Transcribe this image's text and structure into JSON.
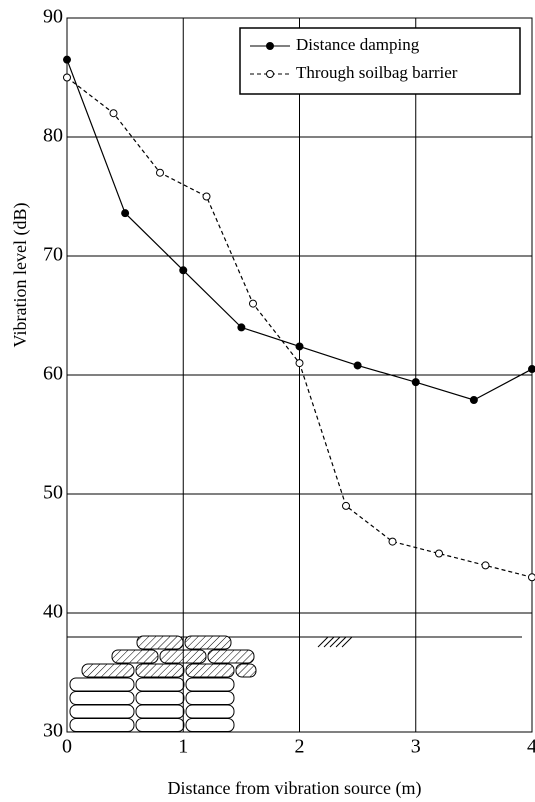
{
  "chart_data": {
    "type": "line",
    "x_label": "Distance from vibration source (m)",
    "y_label": "Vibration level (dB)",
    "xlim": [
      0,
      4
    ],
    "xticks": [
      0,
      1,
      2,
      3,
      4
    ],
    "ylim": [
      30,
      90
    ],
    "yticks": [
      30,
      40,
      50,
      60,
      70,
      80,
      90
    ],
    "grid": true,
    "legend": "upper right",
    "series": [
      {
        "name": "Distance damping",
        "color": "#000000",
        "dashed": false,
        "marker": "filled",
        "x": [
          0,
          0.5,
          1,
          1.5,
          2,
          2.5,
          3,
          3.5,
          4
        ],
        "values": [
          86.5,
          73.6,
          68.8,
          64,
          62.4,
          60.8,
          59.4,
          57.9,
          60.5
        ]
      },
      {
        "name": "Through soilbag barrier",
        "color": "#000000",
        "dashed": true,
        "marker": "open",
        "x": [
          0,
          0.4,
          0.8,
          1.2,
          1.6,
          2,
          2.4,
          2.8,
          3.2,
          3.6,
          4
        ],
        "values": [
          85,
          82,
          77,
          75,
          66,
          61,
          49,
          46,
          45,
          44,
          43
        ]
      }
    ]
  }
}
